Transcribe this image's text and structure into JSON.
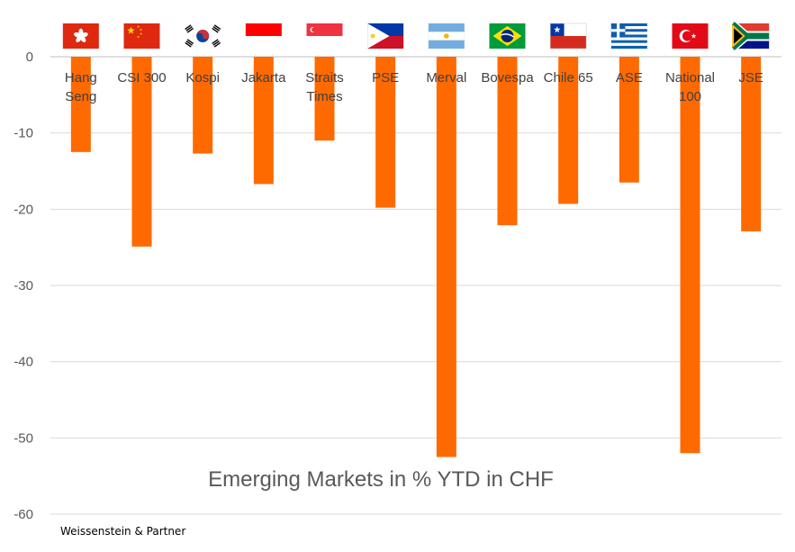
{
  "chart_data": {
    "type": "bar",
    "title": "Emerging Markets in % YTD in CHF",
    "xlabel": "",
    "ylabel": "",
    "categories": [
      "Hang Seng",
      "CSI 300",
      "Kospi",
      "Jakarta",
      "Straits Times",
      "PSE",
      "Merval",
      "Bovespa",
      "Chile 65",
      "ASE",
      "National 100",
      "JSE"
    ],
    "category_lines": [
      [
        "Hang",
        "Seng"
      ],
      [
        "CSI 300"
      ],
      [
        "Kospi"
      ],
      [
        "Jakarta"
      ],
      [
        "Straits",
        "Times"
      ],
      [
        "PSE"
      ],
      [
        "Merval"
      ],
      [
        "Bovespa"
      ],
      [
        "Chile 65"
      ],
      [
        "ASE"
      ],
      [
        "National",
        "100"
      ],
      [
        "JSE"
      ]
    ],
    "values": [
      -12.5,
      -24.9,
      -12.7,
      -16.7,
      -11.0,
      -19.8,
      -52.5,
      -22.1,
      -19.3,
      -16.5,
      -52.0,
      -22.9
    ],
    "ylim": [
      -60,
      0
    ],
    "yticks": [
      0,
      -10,
      -20,
      -30,
      -40,
      -50,
      -60
    ],
    "grid": true,
    "bar_color": "#ff6a00",
    "flags": [
      "hong-kong-flag",
      "china-flag",
      "south-korea-flag",
      "indonesia-flag",
      "singapore-flag",
      "philippines-flag",
      "argentina-flag",
      "brazil-flag",
      "chile-flag",
      "greece-flag",
      "turkey-flag",
      "south-africa-flag"
    ]
  },
  "source": "Weissenstein & Partner"
}
